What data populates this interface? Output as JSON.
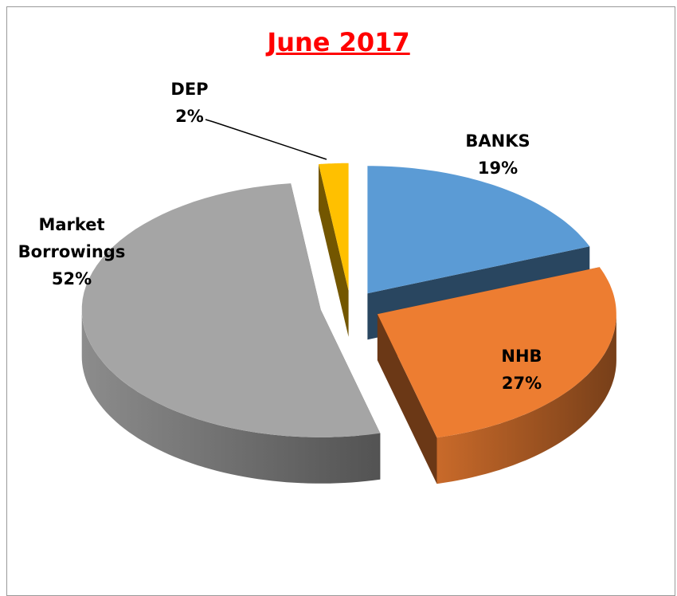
{
  "chart_data": {
    "type": "pie",
    "title": "June 2017",
    "categories": [
      "BANKS",
      "NHB",
      "Market Borrowings",
      "DEP"
    ],
    "values": [
      19,
      27,
      52,
      2
    ],
    "value_labels": [
      "19%",
      "27%",
      "52%",
      "2%"
    ],
    "colors": [
      "#5b9bd5",
      "#ed7d31",
      "#a5a5a5",
      "#ffc000"
    ],
    "title_color": "#ff0000"
  }
}
